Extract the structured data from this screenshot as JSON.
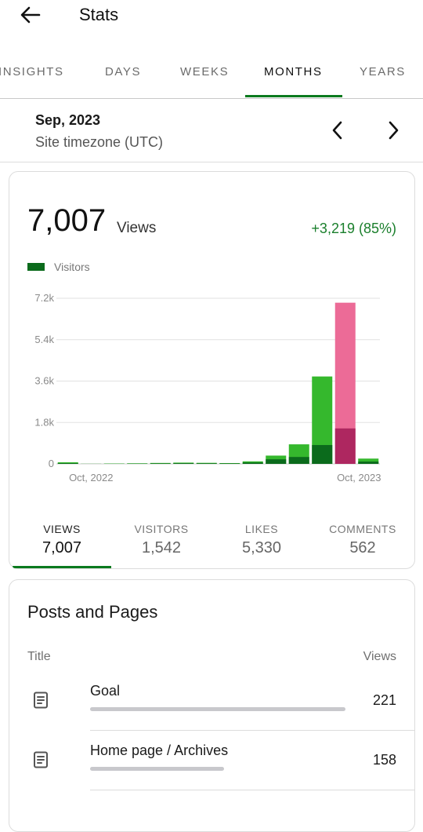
{
  "appbar": {
    "title": "Stats",
    "back_icon": "arrow-left-icon"
  },
  "tabs": [
    {
      "label": "INSIGHTS"
    },
    {
      "label": "DAYS"
    },
    {
      "label": "WEEKS"
    },
    {
      "label": "MONTHS",
      "active": true
    },
    {
      "label": "YEARS"
    }
  ],
  "period": {
    "date": "Sep, 2023",
    "timezone": "Site timezone (UTC)"
  },
  "summary": {
    "value": "7,007",
    "label": "Views",
    "change": "+3,219 (85%)"
  },
  "colors": {
    "accent": "#0b7a1e",
    "positive": "#1a7f2c",
    "bar_dark": "#0b6b1c",
    "bar_light": "#35b82d",
    "bar_highlight_dark": "#ae2760",
    "bar_highlight_light": "#ec6b97"
  },
  "chart_data": {
    "type": "bar",
    "legend": [
      "Visitors"
    ],
    "legend_placement": "top-left",
    "y_ticks": [
      "0",
      "1.8k",
      "3.6k",
      "5.4k",
      "7.2k"
    ],
    "ylim": [
      0,
      7200
    ],
    "x_tick_labels": [
      "Oct, 2022",
      "Oct, 2023"
    ],
    "grid": true,
    "categories": [
      "2022-09",
      "2022-10",
      "2022-11",
      "2022-12",
      "2023-01",
      "2023-02",
      "2023-03",
      "2023-04",
      "2023-05",
      "2023-06",
      "2023-07",
      "2023-08",
      "2023-09",
      "2023-10"
    ],
    "highlighted_index": 12,
    "series": [
      {
        "role": "views",
        "values": [
          70,
          5,
          15,
          25,
          40,
          55,
          45,
          35,
          110,
          360,
          850,
          3800,
          7007,
          230
        ]
      },
      {
        "role": "visitors",
        "values": [
          30,
          2,
          5,
          10,
          20,
          30,
          25,
          20,
          60,
          200,
          300,
          820,
          1542,
          100
        ]
      }
    ]
  },
  "metrics": [
    {
      "label": "VIEWS",
      "value": "7,007",
      "active": true
    },
    {
      "label": "VISITORS",
      "value": "1,542"
    },
    {
      "label": "LIKES",
      "value": "5,330"
    },
    {
      "label": "COMMENTS",
      "value": "562"
    }
  ],
  "posts": {
    "title": "Posts and Pages",
    "col_title": "Title",
    "col_views": "Views",
    "items": [
      {
        "title": "Goal",
        "views": "221",
        "share": 0.978,
        "icon": "document-icon"
      },
      {
        "title": "Home page / Archives",
        "views": "158",
        "share": 0.515,
        "icon": "document-icon"
      }
    ]
  }
}
